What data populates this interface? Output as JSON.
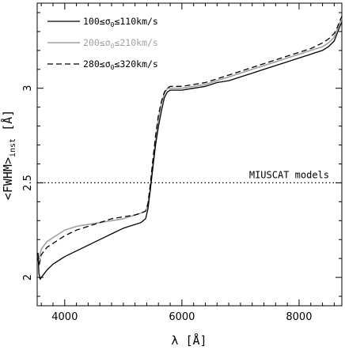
{
  "chart_data": {
    "type": "line",
    "xlabel": "λ [Å]",
    "ylabel": "<FWHM>inst [Å]",
    "ylabel_main": "<FWHM>",
    "ylabel_sub": "inst",
    "ylabel_unit": " [Å]",
    "xlim": [
      3530,
      8730
    ],
    "ylim": [
      1.85,
      3.45
    ],
    "x_ticks": [
      4000,
      6000,
      8000
    ],
    "y_ticks": [
      2,
      2.5,
      3
    ],
    "x_tick_labels": [
      "4000",
      "6000",
      "8000"
    ],
    "y_tick_labels": [
      "2",
      "2.5",
      "3"
    ],
    "legend_position": "top-left",
    "grid": false,
    "reference_line": {
      "y": 2.5,
      "style": "dotted",
      "label": "MIUSCAT models"
    },
    "series": [
      {
        "name": "100≤σ0≤110km/s",
        "label_parts": [
          "100≤σ",
          "0",
          "≤110km/s"
        ],
        "color": "#000000",
        "dash": "solid",
        "x": [
          3545,
          3560,
          3580,
          3600,
          3650,
          3700,
          3800,
          3900,
          4000,
          4200,
          4400,
          4600,
          4800,
          5000,
          5200,
          5300,
          5380,
          5420,
          5460,
          5500,
          5550,
          5600,
          5650,
          5700,
          5750,
          5800,
          5900,
          6000,
          6200,
          6400,
          6600,
          6800,
          7000,
          7200,
          7400,
          7600,
          7800,
          8000,
          8200,
          8400,
          8500,
          8600,
          8650,
          8700,
          8730
        ],
        "y": [
          2.13,
          2.02,
          1.99,
          2.0,
          2.02,
          2.04,
          2.07,
          2.09,
          2.11,
          2.14,
          2.17,
          2.2,
          2.23,
          2.26,
          2.28,
          2.29,
          2.31,
          2.36,
          2.46,
          2.57,
          2.7,
          2.8,
          2.88,
          2.95,
          2.98,
          2.99,
          2.99,
          2.99,
          3.0,
          3.01,
          3.03,
          3.04,
          3.06,
          3.08,
          3.1,
          3.12,
          3.14,
          3.16,
          3.18,
          3.2,
          3.22,
          3.25,
          3.29,
          3.33,
          3.35
        ]
      },
      {
        "name": "200≤σ0≤210km/s",
        "label_parts": [
          "200≤σ",
          "0",
          "≤210km/s"
        ],
        "color": "#a0a0a0",
        "dash": "solid",
        "x": [
          3545,
          3560,
          3580,
          3600,
          3650,
          3700,
          3800,
          3900,
          4000,
          4200,
          4400,
          4600,
          4800,
          5000,
          5200,
          5300,
          5380,
          5420,
          5460,
          5500,
          5550,
          5600,
          5650,
          5700,
          5750,
          5800,
          5900,
          6000,
          6200,
          6400,
          6600,
          6800,
          7000,
          7200,
          7400,
          7600,
          7800,
          8000,
          8200,
          8400,
          8500,
          8600,
          8650,
          8700,
          8730
        ],
        "y": [
          2.12,
          2.1,
          2.12,
          2.15,
          2.17,
          2.19,
          2.21,
          2.23,
          2.25,
          2.27,
          2.28,
          2.29,
          2.3,
          2.31,
          2.33,
          2.34,
          2.35,
          2.38,
          2.47,
          2.59,
          2.72,
          2.84,
          2.92,
          2.97,
          3.0,
          3.0,
          3.0,
          3.0,
          3.01,
          3.02,
          3.04,
          3.06,
          3.08,
          3.1,
          3.12,
          3.14,
          3.16,
          3.18,
          3.2,
          3.22,
          3.24,
          3.27,
          3.31,
          3.35,
          3.37
        ]
      },
      {
        "name": "280≤σ0≤320km/s",
        "label_parts": [
          "280≤σ",
          "0",
          "≤320km/s"
        ],
        "color": "#000000",
        "dash": "dashed",
        "x": [
          3545,
          3560,
          3580,
          3600,
          3650,
          3700,
          3800,
          3900,
          4000,
          4200,
          4400,
          4600,
          4800,
          5000,
          5200,
          5300,
          5380,
          5420,
          5460,
          5500,
          5550,
          5600,
          5650,
          5700,
          5750,
          5800,
          5900,
          6000,
          6200,
          6400,
          6600,
          6800,
          7000,
          7200,
          7400,
          7600,
          7800,
          8000,
          8200,
          8400,
          8500,
          8600,
          8650,
          8700,
          8730
        ],
        "y": [
          2.1,
          2.06,
          2.09,
          2.12,
          2.14,
          2.16,
          2.18,
          2.2,
          2.22,
          2.25,
          2.27,
          2.29,
          2.31,
          2.32,
          2.33,
          2.34,
          2.35,
          2.39,
          2.49,
          2.61,
          2.75,
          2.86,
          2.93,
          2.98,
          3.0,
          3.01,
          3.01,
          3.01,
          3.02,
          3.03,
          3.05,
          3.07,
          3.09,
          3.11,
          3.13,
          3.15,
          3.17,
          3.19,
          3.21,
          3.24,
          3.26,
          3.29,
          3.32,
          3.36,
          3.38
        ]
      }
    ]
  }
}
